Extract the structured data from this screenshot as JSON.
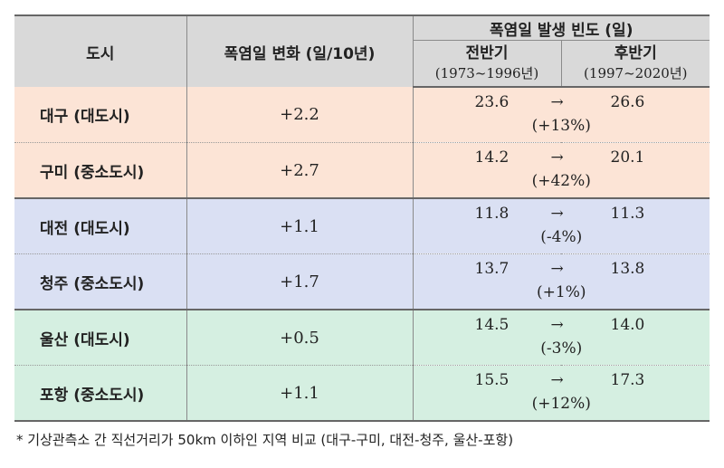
{
  "header": {
    "city": "도시",
    "change": "폭염일 변화 (일/10년)",
    "frequency": "폭염일 발생 빈도 (일)",
    "first_half": "전반기",
    "first_range": "(1973~1996년)",
    "second_half": "후반기",
    "second_range": "(1997~2020년)",
    "arrow": "→"
  },
  "rows": [
    {
      "city": "대구 (대도시)",
      "change": "+2.2",
      "before": "23.6",
      "after": "26.6",
      "pct": "(+13%)",
      "group": "orange"
    },
    {
      "city": "구미 (중소도시)",
      "change": "+2.7",
      "before": "14.2",
      "after": "20.1",
      "pct": "(+42%)",
      "group": "orange"
    },
    {
      "city": "대전 (대도시)",
      "change": "+1.1",
      "before": "11.8",
      "after": "11.3",
      "pct": "(-4%)",
      "group": "blue"
    },
    {
      "city": "청주 (중소도시)",
      "change": "+1.7",
      "before": "13.7",
      "after": "13.8",
      "pct": "(+1%)",
      "group": "blue"
    },
    {
      "city": "울산 (대도시)",
      "change": "+0.5",
      "before": "14.5",
      "after": "14.0",
      "pct": "(-3%)",
      "group": "green"
    },
    {
      "city": "포항 (중소도시)",
      "change": "+1.1",
      "before": "15.5",
      "after": "17.3",
      "pct": "(+12%)",
      "group": "green"
    }
  ],
  "colors": {
    "orange": "#fce4d6",
    "blue": "#dae0f3",
    "green": "#d5efe1",
    "header": "#d9d9d9"
  },
  "footnote": "* 기상관측소 간 직선거리가 50km 이하인 지역 비교 (대구-구미, 대전-청주, 울산-포항)"
}
